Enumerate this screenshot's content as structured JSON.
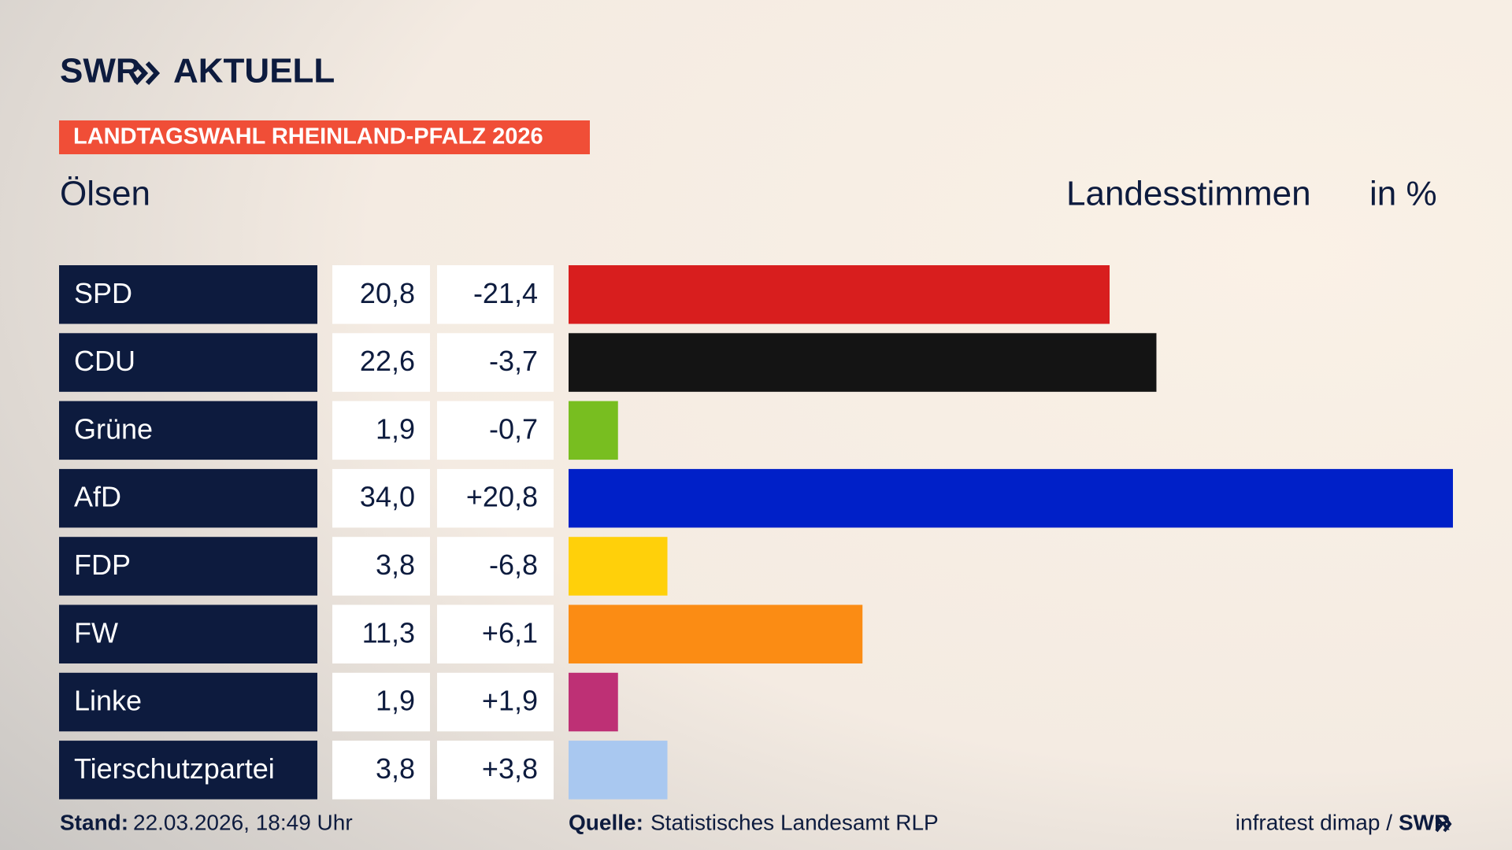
{
  "header": {
    "logo": "SWR",
    "logo_suffix": "AKTUELL",
    "banner": "LANDTAGSWAHL RHEINLAND-PFALZ 2026"
  },
  "chart_data": {
    "type": "bar",
    "title": "Ölsen",
    "value_label": "Landesstimmen",
    "unit_label": "in %",
    "categories": [
      "SPD",
      "CDU",
      "Grüne",
      "AfD",
      "FDP",
      "FW",
      "Linke",
      "Tierschutzpartei"
    ],
    "values": [
      20.8,
      22.6,
      1.9,
      34.0,
      3.8,
      11.3,
      1.9,
      3.8
    ],
    "value_labels": [
      "20,8",
      "22,6",
      "1,9",
      "34,0",
      "3,8",
      "11,3",
      "1,9",
      "3,8"
    ],
    "changes": [
      -21.4,
      -3.7,
      -0.7,
      20.8,
      -6.8,
      6.1,
      1.9,
      3.8
    ],
    "change_labels": [
      "-21,4",
      "-3,7",
      "-0,7",
      "+20,8",
      "-6,8",
      "+6,1",
      "+1,9",
      "+3,8"
    ],
    "colors": [
      "#d81e1e",
      "#141414",
      "#78be20",
      "#0020c8",
      "#ffd00a",
      "#fb8c14",
      "#be3075",
      "#a9c8f0"
    ]
  },
  "footer": {
    "stand_label": "Stand:",
    "stand": "22.03.2026, 18:49 Uhr",
    "source_label": "Quelle:",
    "source": "Statistisches Landesamt RLP",
    "credit": "infratest dimap /",
    "credit_logo": "SWR"
  }
}
